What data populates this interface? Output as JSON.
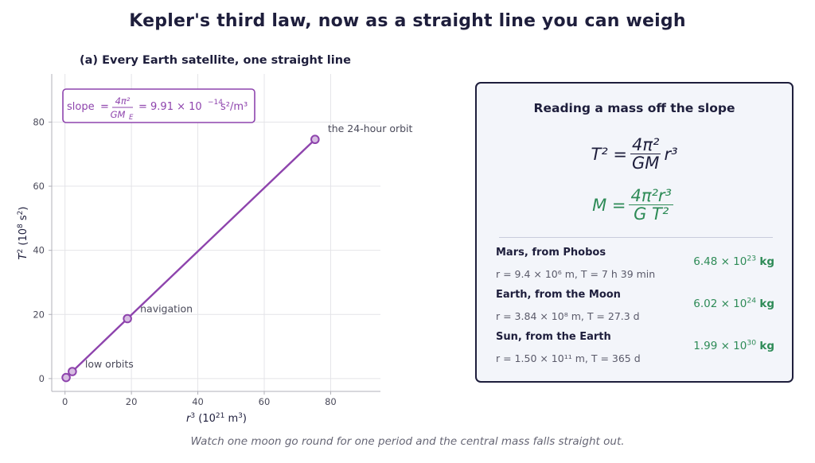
{
  "title": "Kepler's third law, now as a straight line you can weigh",
  "caption": "Watch one moon go round for one period and the central mass falls straight out.",
  "colors": {
    "line": "#8e44ad",
    "point_fill": "#d7bde2",
    "mass": "#2e8b57",
    "ink": "#1e1e3c"
  },
  "chart_data": {
    "type": "line",
    "title": "(a) Every Earth satellite, one straight line",
    "xlabel": "r³ (10²¹ m³)",
    "ylabel": "T² (10⁸ s²)",
    "xlim": [
      -4,
      95
    ],
    "ylim": [
      -4,
      95
    ],
    "x_ticks": [
      0,
      20,
      40,
      60,
      80
    ],
    "y_ticks": [
      0,
      20,
      40,
      60,
      80
    ],
    "x_tick_labels": [
      "0",
      "20",
      "40",
      "60",
      "80"
    ],
    "y_tick_labels": [
      "0",
      "20",
      "40",
      "60",
      "80"
    ],
    "grid": true,
    "series": [
      {
        "x": [
          0.33,
          2.2,
          18.8,
          75.3
        ],
        "y": [
          0.33,
          2.2,
          18.7,
          74.6
        ]
      }
    ],
    "annotations": [
      {
        "text": "low orbits",
        "x": 2.2,
        "y": 2.2
      },
      {
        "text": "navigation",
        "x": 18.8,
        "y": 18.7
      },
      {
        "text": "the 24-hour orbit",
        "x": 75.3,
        "y": 74.6
      }
    ],
    "slope_box": {
      "prefix": "slope",
      "numerator": "4π²",
      "denominator": "GM",
      "denominator_sub": "E",
      "value": "= 9.91 × 10",
      "exp": "−14",
      "unit": "s²/m³"
    }
  },
  "panel": {
    "title": "Reading a mass off the slope",
    "law": {
      "lhs": "T² =",
      "num": "4π²",
      "den": "GM",
      "rhs": "r³"
    },
    "mass": {
      "lhs": "M =",
      "num": "4π²r³",
      "den": "G T²"
    },
    "examples": [
      {
        "name": "Mars, from Phobos",
        "detail": "r = 9.4 × 10⁶ m,  T = 7 h 39 min",
        "value": "6.48 × 10",
        "exp": "23",
        "unit": "kg"
      },
      {
        "name": "Earth, from the Moon",
        "detail": "r = 3.84 × 10⁸ m,  T = 27.3 d",
        "value": "6.02 × 10",
        "exp": "24",
        "unit": "kg"
      },
      {
        "name": "Sun, from the Earth",
        "detail": "r = 1.50 × 10¹¹ m,  T = 365 d",
        "value": "1.99 × 10",
        "exp": "30",
        "unit": "kg"
      }
    ]
  }
}
